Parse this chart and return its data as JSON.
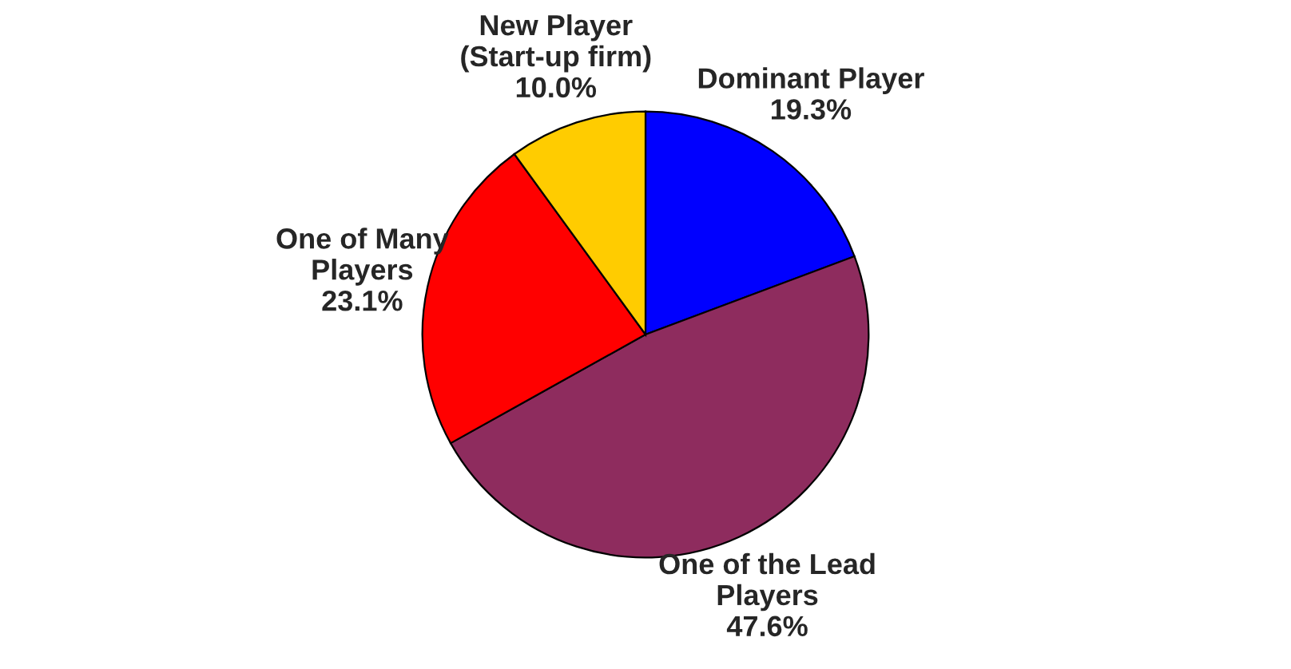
{
  "chart_data": {
    "type": "pie",
    "categories": [
      "Dominant Player",
      "One of the Lead\nPlayers",
      "One of Many\nPlayers",
      "New Player\n(Start-up firm)"
    ],
    "values": [
      19.3,
      47.6,
      23.1,
      10.0
    ],
    "value_labels": [
      "19.3%",
      "47.6%",
      "23.1%",
      "10.0%"
    ],
    "colors": [
      "#0000ff",
      "#8e2c5e",
      "#ff0000",
      "#ffcc00"
    ]
  }
}
